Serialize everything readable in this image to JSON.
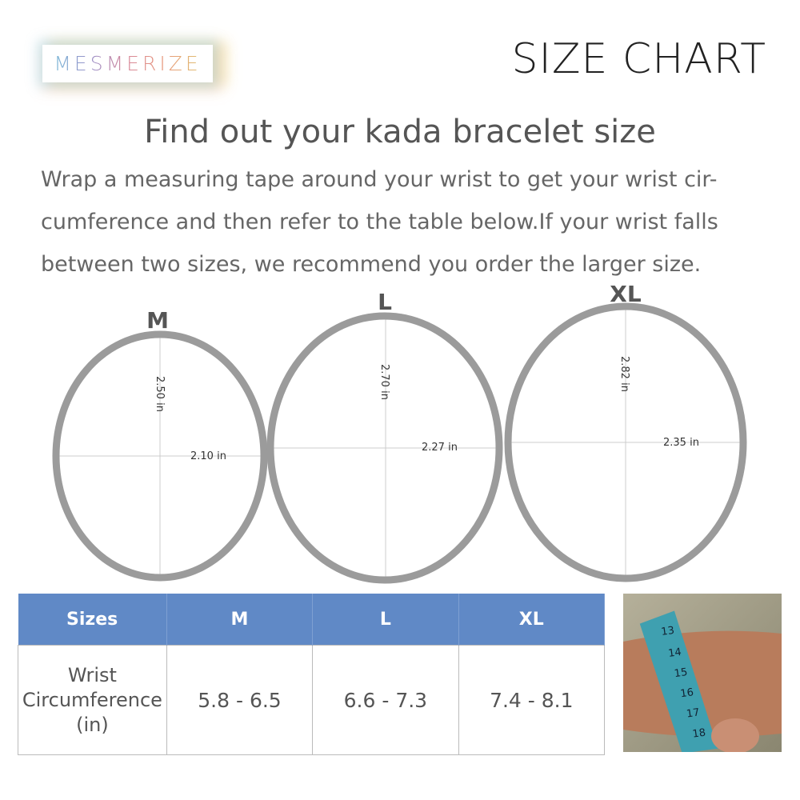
{
  "brand": {
    "logo_text": "MESMERIZE"
  },
  "header": {
    "title": "SIZE CHART"
  },
  "heading": "Find out your kada bracelet size",
  "description": "Wrap a measuring tape around your wrist to get your wrist cir-cumference and then refer to the table below.If your wrist falls between two sizes, we recommend you order the larger size.",
  "rings": [
    {
      "size": "M",
      "height": "2.50 in",
      "width": "2.10 in"
    },
    {
      "size": "L",
      "height": "2.70 in",
      "width": "2.27 in"
    },
    {
      "size": "XL",
      "height": "2.82 in",
      "width": "2.35 in"
    }
  ],
  "table": {
    "headers": [
      "Sizes",
      "M",
      "L",
      "XL"
    ],
    "row_label": [
      "Wrist",
      "Circumference",
      "(in)"
    ],
    "values": [
      "5.8 - 6.5",
      "6.6 - 7.3",
      "7.4 - 8.1"
    ]
  },
  "photo": {
    "tape_marks": [
      "13",
      "14",
      "15",
      "16",
      "17",
      "18"
    ]
  },
  "colors": {
    "header_bg": "#6089c6",
    "ring": "#9b9b9b",
    "tape": "#3fa0b0"
  }
}
